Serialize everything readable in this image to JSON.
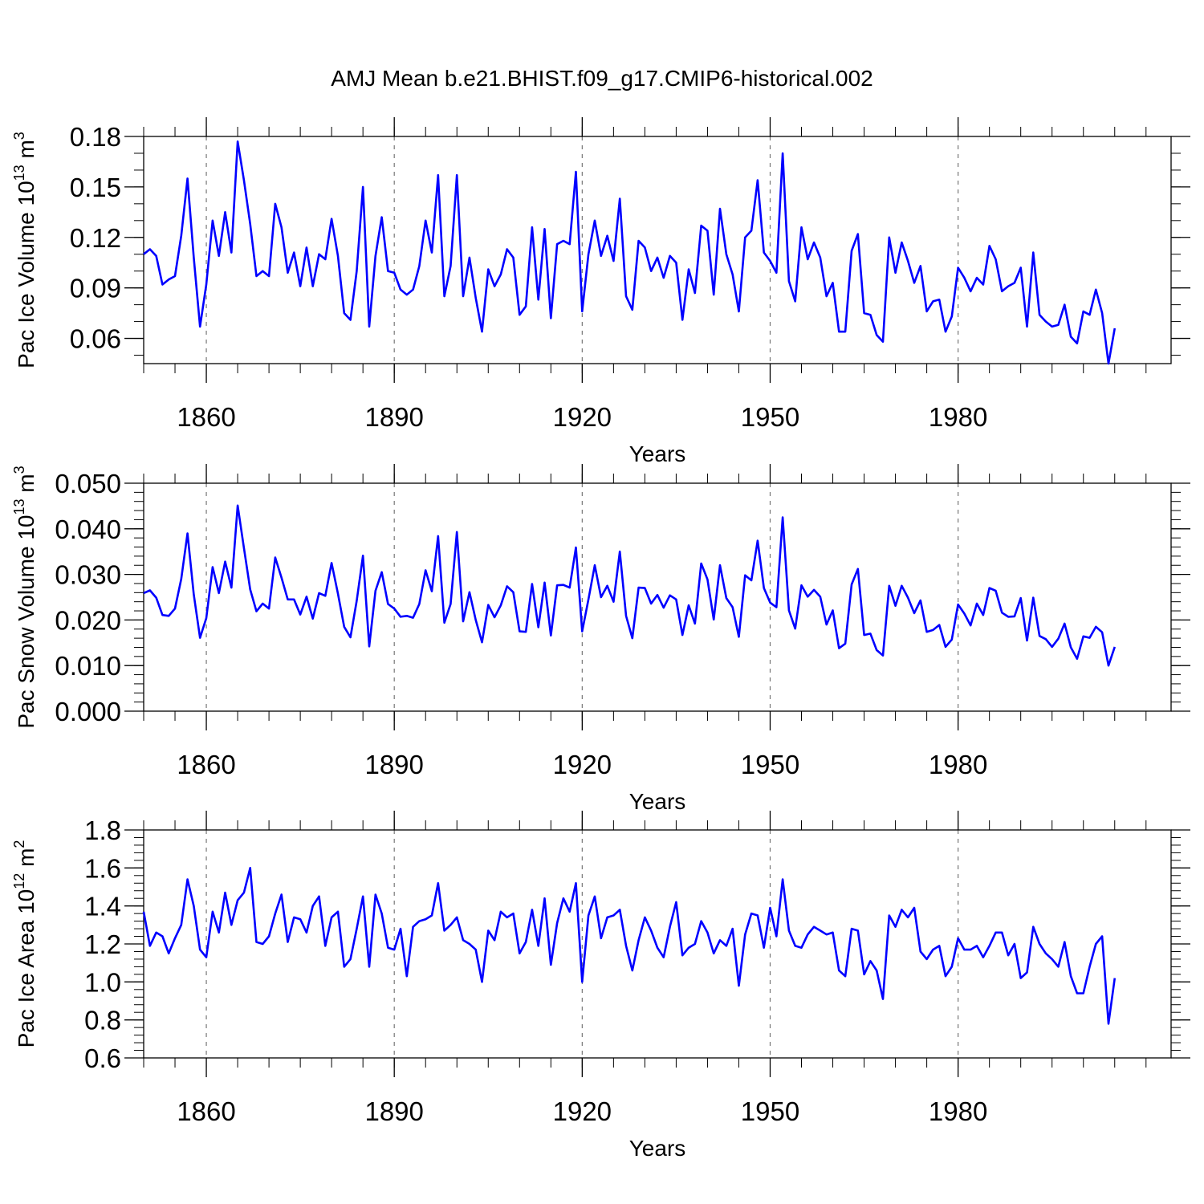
{
  "title": "AMJ Mean b.e21.BHIST.f09_g17.CMIP6-historical.002",
  "line_color": "#0000ff",
  "chart_data": [
    {
      "type": "line",
      "name": "pac-ice-volume",
      "ylabel": "Pac Ice Volume 10",
      "ylabel_sup": "13",
      "ylabel_unit": " m",
      "ylabel_unit_sup": "3",
      "xlabel": "Years",
      "x_start": 1850,
      "xlim": [
        1850,
        2014
      ],
      "ylim": [
        0.045,
        0.18
      ],
      "yticks": [
        0.06,
        0.09,
        0.12,
        0.15,
        0.18
      ],
      "ytick_labels": [
        "0.06",
        "0.09",
        "0.12",
        "0.15",
        "0.18"
      ],
      "ytick_minor_step": 0.01,
      "xticks": [
        1860,
        1890,
        1920,
        1950,
        1980
      ],
      "xtick_labels": [
        "1860",
        "1890",
        "1920",
        "1950",
        "1980"
      ],
      "values": [
        0.11,
        0.113,
        0.109,
        0.092,
        0.095,
        0.097,
        0.121,
        0.155,
        0.108,
        0.067,
        0.092,
        0.13,
        0.109,
        0.135,
        0.111,
        0.177,
        0.154,
        0.128,
        0.097,
        0.1,
        0.097,
        0.14,
        0.126,
        0.099,
        0.111,
        0.091,
        0.114,
        0.091,
        0.11,
        0.107,
        0.131,
        0.109,
        0.075,
        0.071,
        0.1,
        0.15,
        0.067,
        0.109,
        0.132,
        0.1,
        0.099,
        0.089,
        0.086,
        0.089,
        0.103,
        0.13,
        0.111,
        0.157,
        0.085,
        0.103,
        0.157,
        0.085,
        0.108,
        0.084,
        0.064,
        0.101,
        0.091,
        0.098,
        0.113,
        0.108,
        0.074,
        0.079,
        0.126,
        0.083,
        0.125,
        0.072,
        0.116,
        0.118,
        0.116,
        0.159,
        0.076,
        0.11,
        0.13,
        0.109,
        0.121,
        0.106,
        0.143,
        0.085,
        0.077,
        0.118,
        0.114,
        0.1,
        0.108,
        0.096,
        0.109,
        0.105,
        0.071,
        0.101,
        0.087,
        0.127,
        0.124,
        0.086,
        0.137,
        0.11,
        0.098,
        0.076,
        0.12,
        0.124,
        0.154,
        0.111,
        0.106,
        0.099,
        0.17,
        0.094,
        0.082,
        0.126,
        0.107,
        0.117,
        0.108,
        0.085,
        0.093,
        0.064,
        0.064,
        0.112,
        0.122,
        0.075,
        0.074,
        0.062,
        0.058,
        0.12,
        0.099,
        0.117,
        0.106,
        0.093,
        0.103,
        0.076,
        0.082,
        0.083,
        0.064,
        0.073,
        0.102,
        0.096,
        0.088,
        0.096,
        0.092,
        0.115,
        0.107,
        0.088,
        0.091,
        0.093,
        0.102,
        0.067,
        0.111,
        0.074,
        0.07,
        0.067,
        0.068,
        0.08,
        0.061,
        0.057,
        0.076,
        0.074,
        0.089,
        0.075,
        0.045,
        0.066
      ]
    },
    {
      "type": "line",
      "name": "pac-snow-volume",
      "ylabel": "Pac Snow Volume 10",
      "ylabel_sup": "13",
      "ylabel_unit": " m",
      "ylabel_unit_sup": "3",
      "xlabel": "Years",
      "x_start": 1850,
      "xlim": [
        1850,
        2014
      ],
      "ylim": [
        0.0,
        0.05
      ],
      "yticks": [
        0.0,
        0.01,
        0.02,
        0.03,
        0.04,
        0.05
      ],
      "ytick_labels": [
        "0.000",
        "0.010",
        "0.020",
        "0.030",
        "0.040",
        "0.050"
      ],
      "ytick_minor_step": 0.002,
      "xticks": [
        1860,
        1890,
        1920,
        1950,
        1980
      ],
      "xtick_labels": [
        "1860",
        "1890",
        "1920",
        "1950",
        "1980"
      ],
      "values": [
        0.0259,
        0.0265,
        0.0249,
        0.0211,
        0.0209,
        0.0225,
        0.029,
        0.039,
        0.0256,
        0.0161,
        0.0204,
        0.0316,
        0.0259,
        0.0328,
        0.0271,
        0.0451,
        0.0358,
        0.0267,
        0.0219,
        0.0236,
        0.0225,
        0.0337,
        0.0293,
        0.0245,
        0.0245,
        0.0212,
        0.0251,
        0.0203,
        0.0259,
        0.0253,
        0.0325,
        0.0258,
        0.0185,
        0.0162,
        0.0242,
        0.0341,
        0.0142,
        0.0264,
        0.0305,
        0.0235,
        0.0225,
        0.0207,
        0.0209,
        0.0205,
        0.0235,
        0.0309,
        0.0263,
        0.0384,
        0.0194,
        0.0235,
        0.0393,
        0.0197,
        0.0261,
        0.02,
        0.0151,
        0.0233,
        0.0206,
        0.0232,
        0.0274,
        0.0261,
        0.0175,
        0.0174,
        0.0279,
        0.0184,
        0.0282,
        0.0166,
        0.0276,
        0.0277,
        0.0271,
        0.0359,
        0.0175,
        0.0245,
        0.032,
        0.025,
        0.0275,
        0.024,
        0.035,
        0.0209,
        0.016,
        0.0271,
        0.027,
        0.0236,
        0.0255,
        0.0227,
        0.0254,
        0.0245,
        0.0167,
        0.0232,
        0.0192,
        0.0324,
        0.0289,
        0.0201,
        0.032,
        0.0248,
        0.0228,
        0.0163,
        0.0298,
        0.0287,
        0.0374,
        0.027,
        0.0238,
        0.0228,
        0.0425,
        0.0221,
        0.0181,
        0.0276,
        0.0251,
        0.0266,
        0.0251,
        0.019,
        0.0221,
        0.0138,
        0.0148,
        0.0278,
        0.0312,
        0.0167,
        0.017,
        0.0134,
        0.0122,
        0.0275,
        0.0231,
        0.0275,
        0.0249,
        0.0215,
        0.0243,
        0.0174,
        0.0178,
        0.0189,
        0.0141,
        0.0157,
        0.0234,
        0.0214,
        0.0188,
        0.0236,
        0.0211,
        0.027,
        0.0264,
        0.0216,
        0.0207,
        0.0208,
        0.0248,
        0.0155,
        0.0249,
        0.0165,
        0.0158,
        0.0141,
        0.0159,
        0.0192,
        0.014,
        0.0115,
        0.0164,
        0.0161,
        0.0185,
        0.0173,
        0.01,
        0.0141
      ]
    },
    {
      "type": "line",
      "name": "pac-ice-area",
      "ylabel": "Pac Ice Area 10",
      "ylabel_sup": "12",
      "ylabel_unit": " m",
      "ylabel_unit_sup": "2",
      "xlabel": "Years",
      "x_start": 1850,
      "xlim": [
        1850,
        2014
      ],
      "ylim": [
        0.6,
        1.8
      ],
      "yticks": [
        0.6,
        0.8,
        1.0,
        1.2,
        1.4,
        1.6,
        1.8
      ],
      "ytick_labels": [
        "0.6",
        "0.8",
        "1.0",
        "1.2",
        "1.4",
        "1.6",
        "1.8"
      ],
      "ytick_minor_step": 0.04,
      "xticks": [
        1860,
        1890,
        1920,
        1950,
        1980
      ],
      "xtick_labels": [
        "1860",
        "1890",
        "1920",
        "1950",
        "1980"
      ],
      "values": [
        1.37,
        1.19,
        1.26,
        1.24,
        1.15,
        1.23,
        1.3,
        1.54,
        1.4,
        1.17,
        1.13,
        1.37,
        1.26,
        1.47,
        1.3,
        1.43,
        1.47,
        1.6,
        1.21,
        1.2,
        1.24,
        1.36,
        1.46,
        1.21,
        1.34,
        1.33,
        1.26,
        1.4,
        1.45,
        1.19,
        1.34,
        1.37,
        1.08,
        1.12,
        1.28,
        1.45,
        1.08,
        1.46,
        1.36,
        1.18,
        1.17,
        1.28,
        1.03,
        1.29,
        1.32,
        1.33,
        1.35,
        1.52,
        1.27,
        1.3,
        1.34,
        1.22,
        1.2,
        1.17,
        1.0,
        1.27,
        1.22,
        1.37,
        1.34,
        1.36,
        1.15,
        1.21,
        1.38,
        1.19,
        1.44,
        1.09,
        1.31,
        1.44,
        1.37,
        1.52,
        1.0,
        1.35,
        1.45,
        1.23,
        1.34,
        1.35,
        1.38,
        1.19,
        1.06,
        1.22,
        1.34,
        1.27,
        1.18,
        1.13,
        1.29,
        1.42,
        1.14,
        1.18,
        1.2,
        1.32,
        1.26,
        1.15,
        1.22,
        1.19,
        1.28,
        0.98,
        1.25,
        1.36,
        1.35,
        1.18,
        1.39,
        1.24,
        1.54,
        1.27,
        1.19,
        1.18,
        1.25,
        1.29,
        1.27,
        1.25,
        1.26,
        1.06,
        1.03,
        1.28,
        1.27,
        1.04,
        1.11,
        1.06,
        0.91,
        1.35,
        1.29,
        1.38,
        1.34,
        1.39,
        1.16,
        1.12,
        1.17,
        1.19,
        1.03,
        1.08,
        1.23,
        1.17,
        1.17,
        1.19,
        1.13,
        1.19,
        1.26,
        1.26,
        1.14,
        1.2,
        1.02,
        1.05,
        1.29,
        1.2,
        1.15,
        1.12,
        1.08,
        1.21,
        1.03,
        0.94,
        0.94,
        1.08,
        1.2,
        1.24,
        0.78,
        1.02
      ]
    }
  ]
}
